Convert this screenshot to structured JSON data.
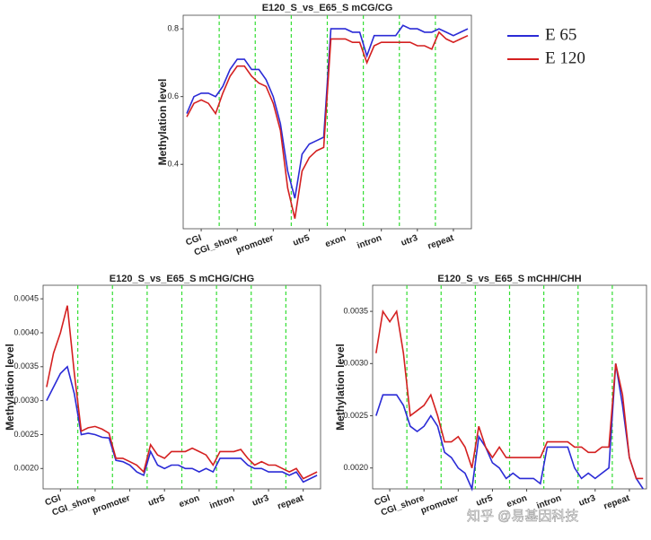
{
  "chart_data": [
    {
      "type": "line",
      "title": "E120_S_vs_E65_S mCG/CG",
      "ylabel": "Methylation level",
      "x": [
        1,
        3,
        5,
        7,
        9,
        11,
        13,
        15,
        17,
        19,
        21,
        23,
        25,
        27,
        29,
        31,
        33,
        35,
        37,
        39,
        41,
        43,
        45,
        47,
        49,
        51,
        53,
        55,
        57,
        59,
        61,
        63,
        65,
        67,
        69,
        71,
        73,
        75,
        77,
        79
      ],
      "xlim": [
        0,
        80
      ],
      "ylim": [
        0.21,
        0.84
      ],
      "yticks": [
        0.4,
        0.6,
        0.8
      ],
      "xticks": [
        {
          "value": 5,
          "label": "CGI"
        },
        {
          "value": 15,
          "label": "CGI_shore"
        },
        {
          "value": 25,
          "label": "promoter"
        },
        {
          "value": 35,
          "label": "utr5"
        },
        {
          "value": 45,
          "label": "exon"
        },
        {
          "value": 55,
          "label": "intron"
        },
        {
          "value": 65,
          "label": "utr3"
        },
        {
          "value": 75,
          "label": "repeat"
        }
      ],
      "dividers": [
        10,
        20,
        30,
        40,
        50,
        60,
        70
      ],
      "divider_color": "#33dd33",
      "legend": "right",
      "series": [
        {
          "name": "E 65",
          "color": "#2b2bd6",
          "values": [
            0.55,
            0.6,
            0.61,
            0.61,
            0.6,
            0.63,
            0.68,
            0.71,
            0.71,
            0.68,
            0.68,
            0.65,
            0.6,
            0.52,
            0.38,
            0.3,
            0.43,
            0.46,
            0.47,
            0.48,
            0.8,
            0.8,
            0.8,
            0.79,
            0.79,
            0.72,
            0.78,
            0.78,
            0.78,
            0.78,
            0.81,
            0.8,
            0.8,
            0.79,
            0.79,
            0.8,
            0.79,
            0.78,
            0.79,
            0.8
          ]
        },
        {
          "name": "E 120",
          "color": "#d42020",
          "values": [
            0.54,
            0.58,
            0.59,
            0.58,
            0.55,
            0.61,
            0.66,
            0.69,
            0.69,
            0.66,
            0.64,
            0.63,
            0.58,
            0.5,
            0.33,
            0.24,
            0.38,
            0.42,
            0.44,
            0.45,
            0.77,
            0.77,
            0.77,
            0.76,
            0.76,
            0.7,
            0.75,
            0.76,
            0.76,
            0.76,
            0.76,
            0.76,
            0.75,
            0.75,
            0.74,
            0.79,
            0.77,
            0.76,
            0.77,
            0.78
          ]
        }
      ]
    },
    {
      "type": "line",
      "title": "E120_S_vs_E65_S mCHG/CHG",
      "ylabel": "Methylation level",
      "x": [
        1,
        3,
        5,
        7,
        9,
        11,
        13,
        15,
        17,
        19,
        21,
        23,
        25,
        27,
        29,
        31,
        33,
        35,
        37,
        39,
        41,
        43,
        45,
        47,
        49,
        51,
        53,
        55,
        57,
        59,
        61,
        63,
        65,
        67,
        69,
        71,
        73,
        75,
        77,
        79
      ],
      "xlim": [
        0,
        80
      ],
      "ylim": [
        0.0017,
        0.0047
      ],
      "yticks": [
        {
          "value": 0.002,
          "label": "0.0020"
        },
        {
          "value": 0.0025,
          "label": "0.0025"
        },
        {
          "value": 0.003,
          "label": "0.0030"
        },
        {
          "value": 0.0035,
          "label": "0.0035"
        },
        {
          "value": 0.004,
          "label": "0.0040"
        },
        {
          "value": 0.0045,
          "label": "0.0045"
        }
      ],
      "xticks": [
        {
          "value": 5,
          "label": "CGI"
        },
        {
          "value": 15,
          "label": "CGI_shore"
        },
        {
          "value": 25,
          "label": "promoter"
        },
        {
          "value": 35,
          "label": "utr5"
        },
        {
          "value": 45,
          "label": "exon"
        },
        {
          "value": 55,
          "label": "intron"
        },
        {
          "value": 65,
          "label": "utr3"
        },
        {
          "value": 75,
          "label": "repeat"
        }
      ],
      "dividers": [
        10,
        20,
        30,
        40,
        50,
        60,
        70
      ],
      "divider_color": "#33dd33",
      "series": [
        {
          "color": "#2b2bd6",
          "values": [
            0.003,
            0.0032,
            0.0034,
            0.0035,
            0.0031,
            0.0025,
            0.00252,
            0.0025,
            0.00246,
            0.00245,
            0.00212,
            0.0021,
            0.00205,
            0.00195,
            0.0019,
            0.00225,
            0.00205,
            0.002,
            0.00205,
            0.00205,
            0.002,
            0.002,
            0.00195,
            0.002,
            0.00195,
            0.00215,
            0.00215,
            0.00215,
            0.00215,
            0.00205,
            0.002,
            0.002,
            0.00195,
            0.00195,
            0.00195,
            0.0019,
            0.00195,
            0.0018,
            0.00185,
            0.0019
          ]
        },
        {
          "color": "#d42020",
          "values": [
            0.0032,
            0.0037,
            0.004,
            0.0044,
            0.0034,
            0.00255,
            0.0026,
            0.00262,
            0.00258,
            0.00252,
            0.00215,
            0.00215,
            0.0021,
            0.00205,
            0.00195,
            0.00235,
            0.0022,
            0.00215,
            0.00225,
            0.00225,
            0.00225,
            0.0023,
            0.00225,
            0.0022,
            0.00205,
            0.00225,
            0.00225,
            0.00225,
            0.00228,
            0.00215,
            0.00205,
            0.0021,
            0.00205,
            0.00205,
            0.002,
            0.00195,
            0.002,
            0.00185,
            0.0019,
            0.00195
          ]
        }
      ]
    },
    {
      "type": "line",
      "title": "E120_S_vs_E65_S mCHH/CHH",
      "ylabel": "Methylation level",
      "x": [
        1,
        3,
        5,
        7,
        9,
        11,
        13,
        15,
        17,
        19,
        21,
        23,
        25,
        27,
        29,
        31,
        33,
        35,
        37,
        39,
        41,
        43,
        45,
        47,
        49,
        51,
        53,
        55,
        57,
        59,
        61,
        63,
        65,
        67,
        69,
        71,
        73,
        75,
        77,
        79
      ],
      "xlim": [
        0,
        80
      ],
      "ylim": [
        0.0018,
        0.00375
      ],
      "yticks": [
        {
          "value": 0.002,
          "label": "0.0020"
        },
        {
          "value": 0.0025,
          "label": "0.0025"
        },
        {
          "value": 0.003,
          "label": "0.0030"
        },
        {
          "value": 0.0035,
          "label": "0.0035"
        }
      ],
      "xticks": [
        {
          "value": 5,
          "label": "CGI"
        },
        {
          "value": 15,
          "label": "CGI_shore"
        },
        {
          "value": 25,
          "label": "promoter"
        },
        {
          "value": 35,
          "label": "utr5"
        },
        {
          "value": 45,
          "label": "exon"
        },
        {
          "value": 55,
          "label": "intron"
        },
        {
          "value": 65,
          "label": "utr3"
        },
        {
          "value": 75,
          "label": "repeat"
        }
      ],
      "dividers": [
        10,
        20,
        30,
        40,
        50,
        60,
        70
      ],
      "divider_color": "#33dd33",
      "series": [
        {
          "color": "#2b2bd6",
          "values": [
            0.0025,
            0.0027,
            0.0027,
            0.0027,
            0.0026,
            0.0024,
            0.00235,
            0.0024,
            0.0025,
            0.0024,
            0.00215,
            0.0021,
            0.002,
            0.00195,
            0.0018,
            0.0023,
            0.0022,
            0.00205,
            0.002,
            0.0019,
            0.00195,
            0.0019,
            0.0019,
            0.0019,
            0.00185,
            0.0022,
            0.0022,
            0.0022,
            0.0022,
            0.002,
            0.0019,
            0.00195,
            0.0019,
            0.00195,
            0.002,
            0.003,
            0.0026,
            0.0021,
            0.0019,
            0.0018
          ]
        },
        {
          "color": "#d42020",
          "values": [
            0.0031,
            0.0035,
            0.0034,
            0.0035,
            0.0031,
            0.0025,
            0.00255,
            0.0026,
            0.0027,
            0.0025,
            0.00225,
            0.00225,
            0.0023,
            0.0022,
            0.002,
            0.0024,
            0.0022,
            0.0021,
            0.0022,
            0.0021,
            0.0021,
            0.0021,
            0.0021,
            0.0021,
            0.0021,
            0.00225,
            0.00225,
            0.00225,
            0.00225,
            0.0022,
            0.0022,
            0.00215,
            0.00215,
            0.0022,
            0.0022,
            0.003,
            0.0027,
            0.0021,
            0.0019,
            0.0019
          ]
        }
      ]
    }
  ],
  "watermark": "知乎 @易基因科技"
}
